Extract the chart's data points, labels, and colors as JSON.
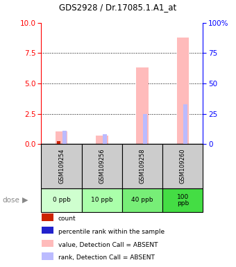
{
  "title": "GDS2928 / Dr.17085.1.A1_at",
  "samples": [
    "GSM109254",
    "GSM109256",
    "GSM109258",
    "GSM109260"
  ],
  "doses": [
    "0 ppb",
    "10 ppb",
    "40 ppb",
    "100\nppb"
  ],
  "ylim_left": [
    0,
    10
  ],
  "ylim_right": [
    0,
    100
  ],
  "yticks_left": [
    0,
    2.5,
    5,
    7.5,
    10
  ],
  "yticks_right": [
    0,
    25,
    50,
    75,
    100
  ],
  "count_color": "#cc2200",
  "rank_color": "#2222cc",
  "absent_value_color": "#ffbbbb",
  "absent_rank_color": "#bbbbff",
  "absent_value_values": [
    1.05,
    0.72,
    6.3,
    8.8
  ],
  "absent_rank_values": [
    1.1,
    0.8,
    2.5,
    3.3
  ],
  "count_values": [
    0.25,
    0.0,
    0.0,
    0.0
  ],
  "rank_values": [
    0.0,
    0.0,
    0.0,
    0.0
  ],
  "gray_bg": "#cccccc",
  "dose_greens": [
    "#cfffcf",
    "#aaffaa",
    "#77ee77",
    "#44dd44"
  ],
  "legend_items": [
    {
      "color": "#cc2200",
      "label": "count"
    },
    {
      "color": "#2222cc",
      "label": "percentile rank within the sample"
    },
    {
      "color": "#ffbbbb",
      "label": "value, Detection Call = ABSENT"
    },
    {
      "color": "#bbbbff",
      "label": "rank, Detection Call = ABSENT"
    }
  ]
}
